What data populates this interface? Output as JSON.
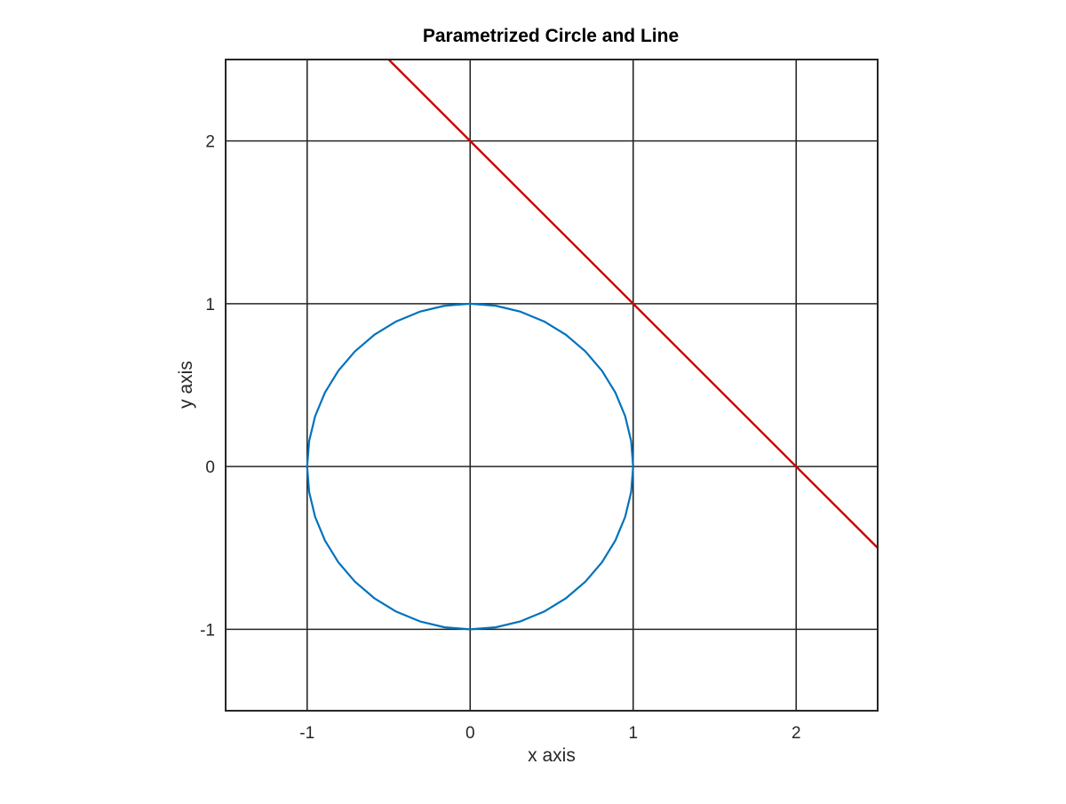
{
  "chart_data": {
    "type": "line",
    "title": "Parametrized Circle and Line",
    "xlabel": "x axis",
    "ylabel": "y axis",
    "xlim": [
      -1.5,
      2.5
    ],
    "ylim": [
      -1.5,
      2.5
    ],
    "xticks": [
      -1,
      0,
      1,
      2
    ],
    "yticks": [
      -1,
      0,
      1,
      2
    ],
    "xtick_labels": [
      "-1",
      "0",
      "1",
      "2"
    ],
    "ytick_labels": [
      "-1",
      "0",
      "1",
      "2"
    ],
    "grid": true,
    "aspect": "equal",
    "series": [
      {
        "kind": "parametric-circle",
        "center": [
          0,
          0
        ],
        "radius": 1,
        "samples": 41,
        "color": "#0072BD"
      },
      {
        "kind": "line",
        "points": [
          [
            -0.55,
            2.55
          ],
          [
            2.5,
            -0.5
          ]
        ],
        "color": "#CC0000"
      }
    ]
  }
}
